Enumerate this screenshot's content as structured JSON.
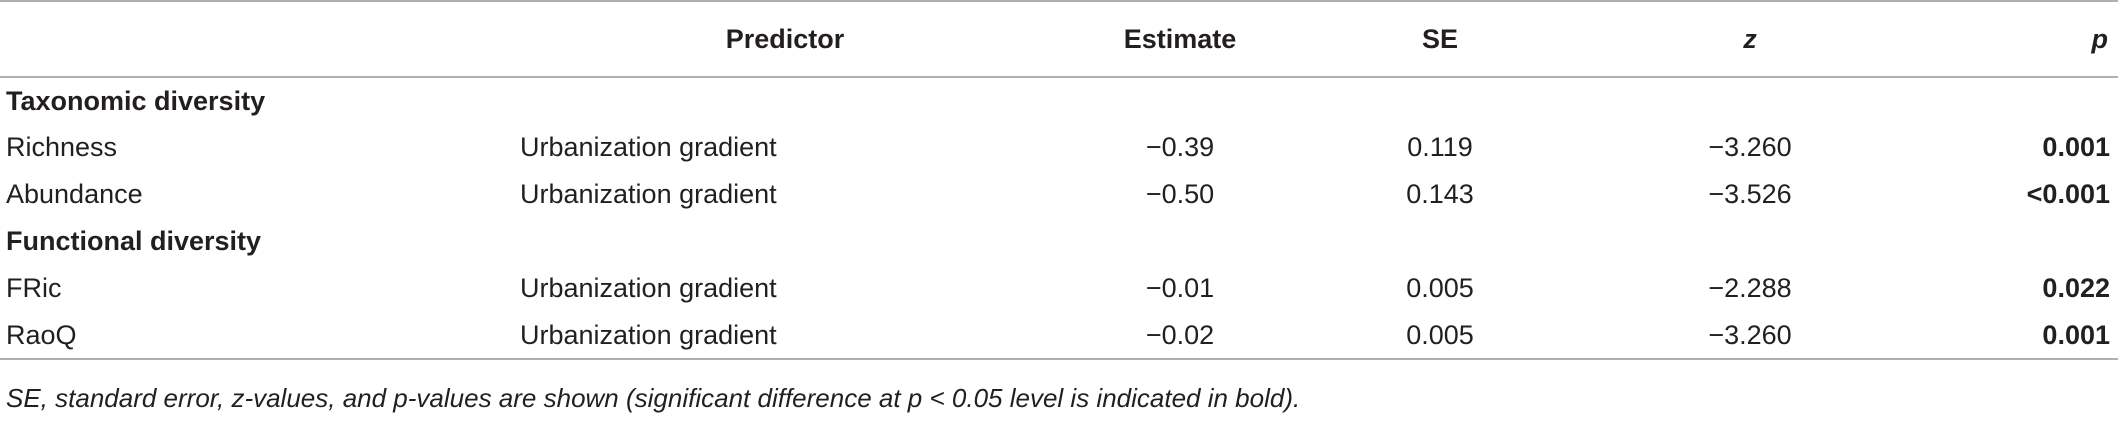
{
  "table": {
    "headers": {
      "label": "",
      "predictor": "Predictor",
      "estimate": "Estimate",
      "se": "SE",
      "z": "z",
      "p": "p"
    },
    "groups": [
      {
        "title": "Taxonomic diversity",
        "rows": [
          {
            "label": "Richness",
            "predictor": "Urbanization gradient",
            "estimate": "−0.39",
            "se": "0.119",
            "z": "−3.260",
            "p": "0.001"
          },
          {
            "label": "Abundance",
            "predictor": "Urbanization gradient",
            "estimate": "−0.50",
            "se": "0.143",
            "z": "−3.526",
            "p": "<0.001"
          }
        ]
      },
      {
        "title": "Functional diversity",
        "rows": [
          {
            "label": "FRic",
            "predictor": "Urbanization gradient",
            "estimate": "−0.01",
            "se": "0.005",
            "z": "−2.288",
            "p": "0.022"
          },
          {
            "label": "RaoQ",
            "predictor": "Urbanization gradient",
            "estimate": "−0.02",
            "se": "0.005",
            "z": "−3.260",
            "p": "0.001"
          }
        ]
      }
    ]
  },
  "footnote": "SE, standard error, z-values, and p-values are shown (significant difference at p < 0.05 level is indicated in bold)."
}
